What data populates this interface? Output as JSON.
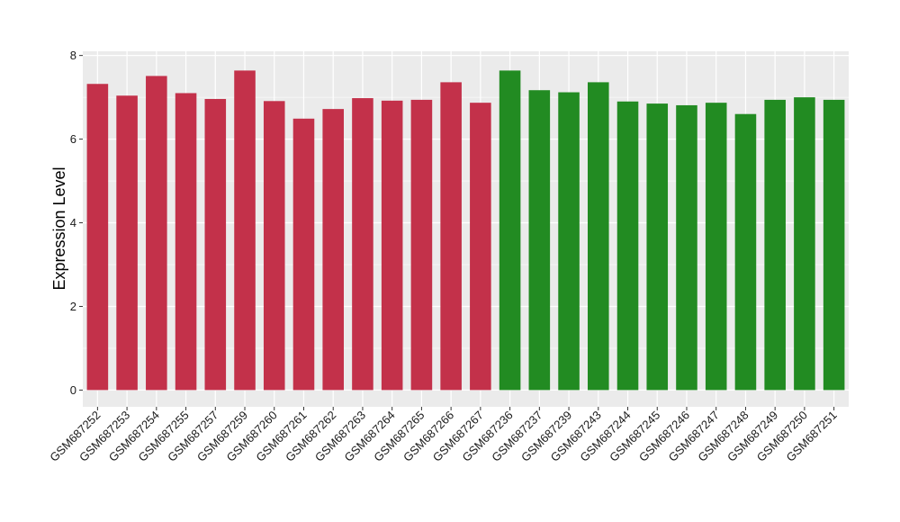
{
  "chart_data": {
    "type": "bar",
    "ylabel": "Expression Level",
    "ylim": [
      -0.4,
      8.1
    ],
    "yticks": [
      0,
      2,
      4,
      6,
      8
    ],
    "grid": true,
    "categories": [
      "GSM687252",
      "GSM687253",
      "GSM687254",
      "GSM687255",
      "GSM687257",
      "GSM687259",
      "GSM687260",
      "GSM687261",
      "GSM687262",
      "GSM687263",
      "GSM687264",
      "GSM687265",
      "GSM687266",
      "GSM687267",
      "GSM687236",
      "GSM687237",
      "GSM687239",
      "GSM687243",
      "GSM687244",
      "GSM687245",
      "GSM687246",
      "GSM687247",
      "GSM687248",
      "GSM687249",
      "GSM687250",
      "GSM687251"
    ],
    "values": [
      7.32,
      7.04,
      7.51,
      7.1,
      6.96,
      7.64,
      6.91,
      6.49,
      6.72,
      6.98,
      6.92,
      6.94,
      7.36,
      6.87,
      7.64,
      7.17,
      7.12,
      7.36,
      6.9,
      6.85,
      6.81,
      6.87,
      6.6,
      6.94,
      7.0,
      6.94
    ],
    "group_index": [
      0,
      0,
      0,
      0,
      0,
      0,
      0,
      0,
      0,
      0,
      0,
      0,
      0,
      0,
      1,
      1,
      1,
      1,
      1,
      1,
      1,
      1,
      1,
      1,
      1,
      1
    ],
    "colors": [
      "#c3314a",
      "#228b22"
    ],
    "panel_color": "#ebebeb",
    "grid_color": "#ffffff"
  }
}
